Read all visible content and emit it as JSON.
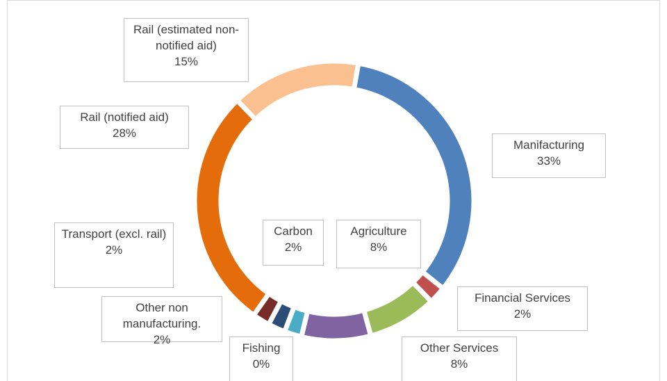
{
  "chart_data": {
    "type": "donut",
    "categories": [
      "Manifacturing",
      "Financial Services",
      "Other Services",
      "Agriculture",
      "Fishing",
      "Carbon",
      "Other non manufacturing.",
      "Transport (excl. rail)",
      "Rail (notified aid)",
      "Rail (estimated non-notified aid)"
    ],
    "values": [
      33,
      2,
      8,
      8,
      0,
      2,
      2,
      2,
      28,
      15
    ],
    "value_labels": [
      "33%",
      "2%",
      "8%",
      "8%",
      "0%",
      "2%",
      "2%",
      "2%",
      "28%",
      "15%"
    ],
    "colors": [
      "#4f81bd",
      "#c0504d",
      "#9bbb59",
      "#8064a2",
      "#f79646",
      "#4bacc6",
      "#2c4d75",
      "#772c2a",
      "#e46c0a",
      "#fac090"
    ]
  }
}
